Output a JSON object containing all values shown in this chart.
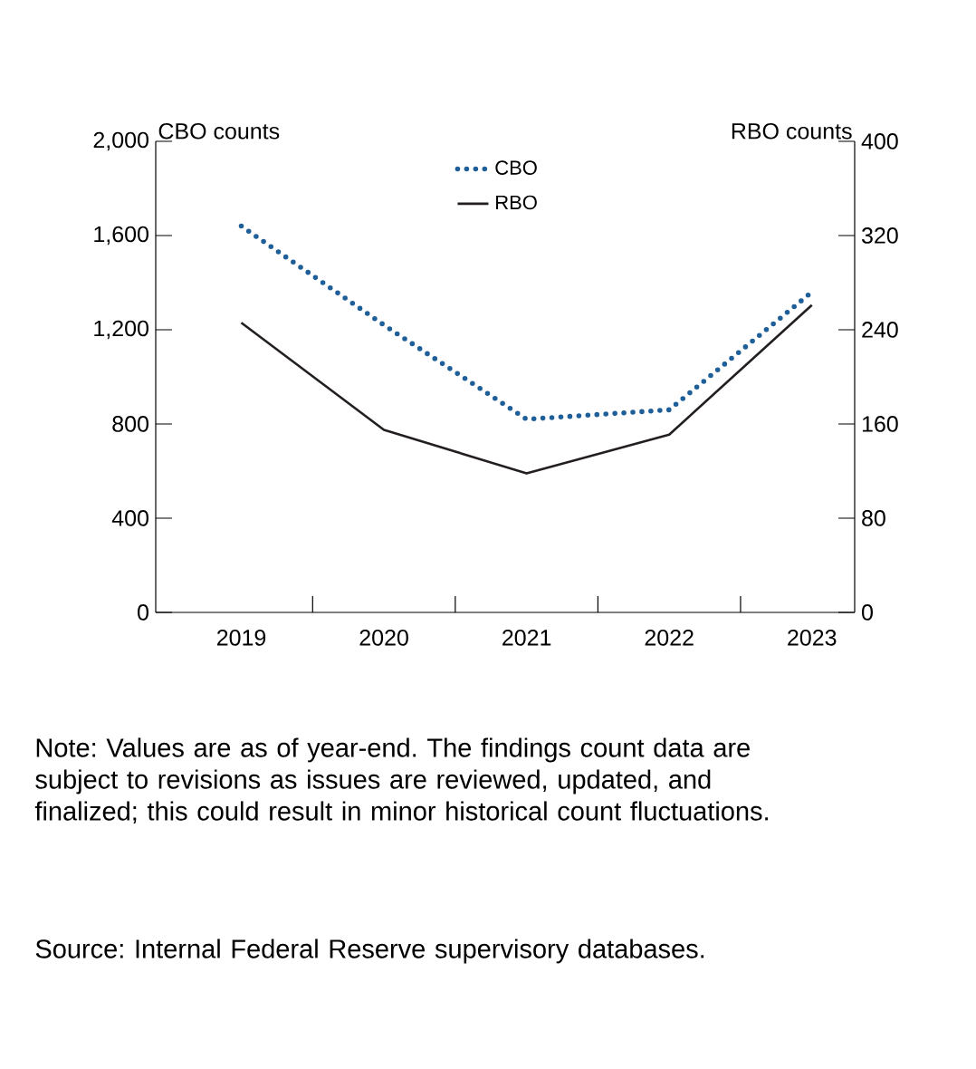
{
  "chart_data": {
    "type": "line",
    "categories": [
      "2019",
      "2020",
      "2021",
      "2022",
      "2023"
    ],
    "series": [
      {
        "name": "CBO",
        "color": "#1f5f99",
        "line_style": "dotted",
        "values": [
          1640,
          1220,
          820,
          860,
          1360
        ]
      },
      {
        "name": "RBO",
        "color": "#231f20",
        "line_style": "solid",
        "axis": "y2",
        "values": [
          246,
          155,
          118,
          151,
          261
        ]
      }
    ],
    "ylabel": "CBO counts",
    "y2label": "RBO counts",
    "ylim": [
      0,
      2000
    ],
    "yticks": [
      0,
      400,
      800,
      {
        "value": 1200,
        "label": "1,200"
      },
      {
        "value": 1600,
        "label": "1,600"
      },
      {
        "value": 2000,
        "label": "2,000"
      }
    ],
    "y2lim": [
      0,
      400
    ],
    "y2ticks": [
      0,
      80,
      160,
      240,
      320,
      400
    ],
    "legend": "top",
    "annotations": [
      "Note: Values are as of year-end. The findings count data are subject to revisions as issues are reviewed, updated, and finalized; this could result in minor historical count fluctuations.",
      "Source: Internal Federal Reserve supervisory databases."
    ]
  }
}
